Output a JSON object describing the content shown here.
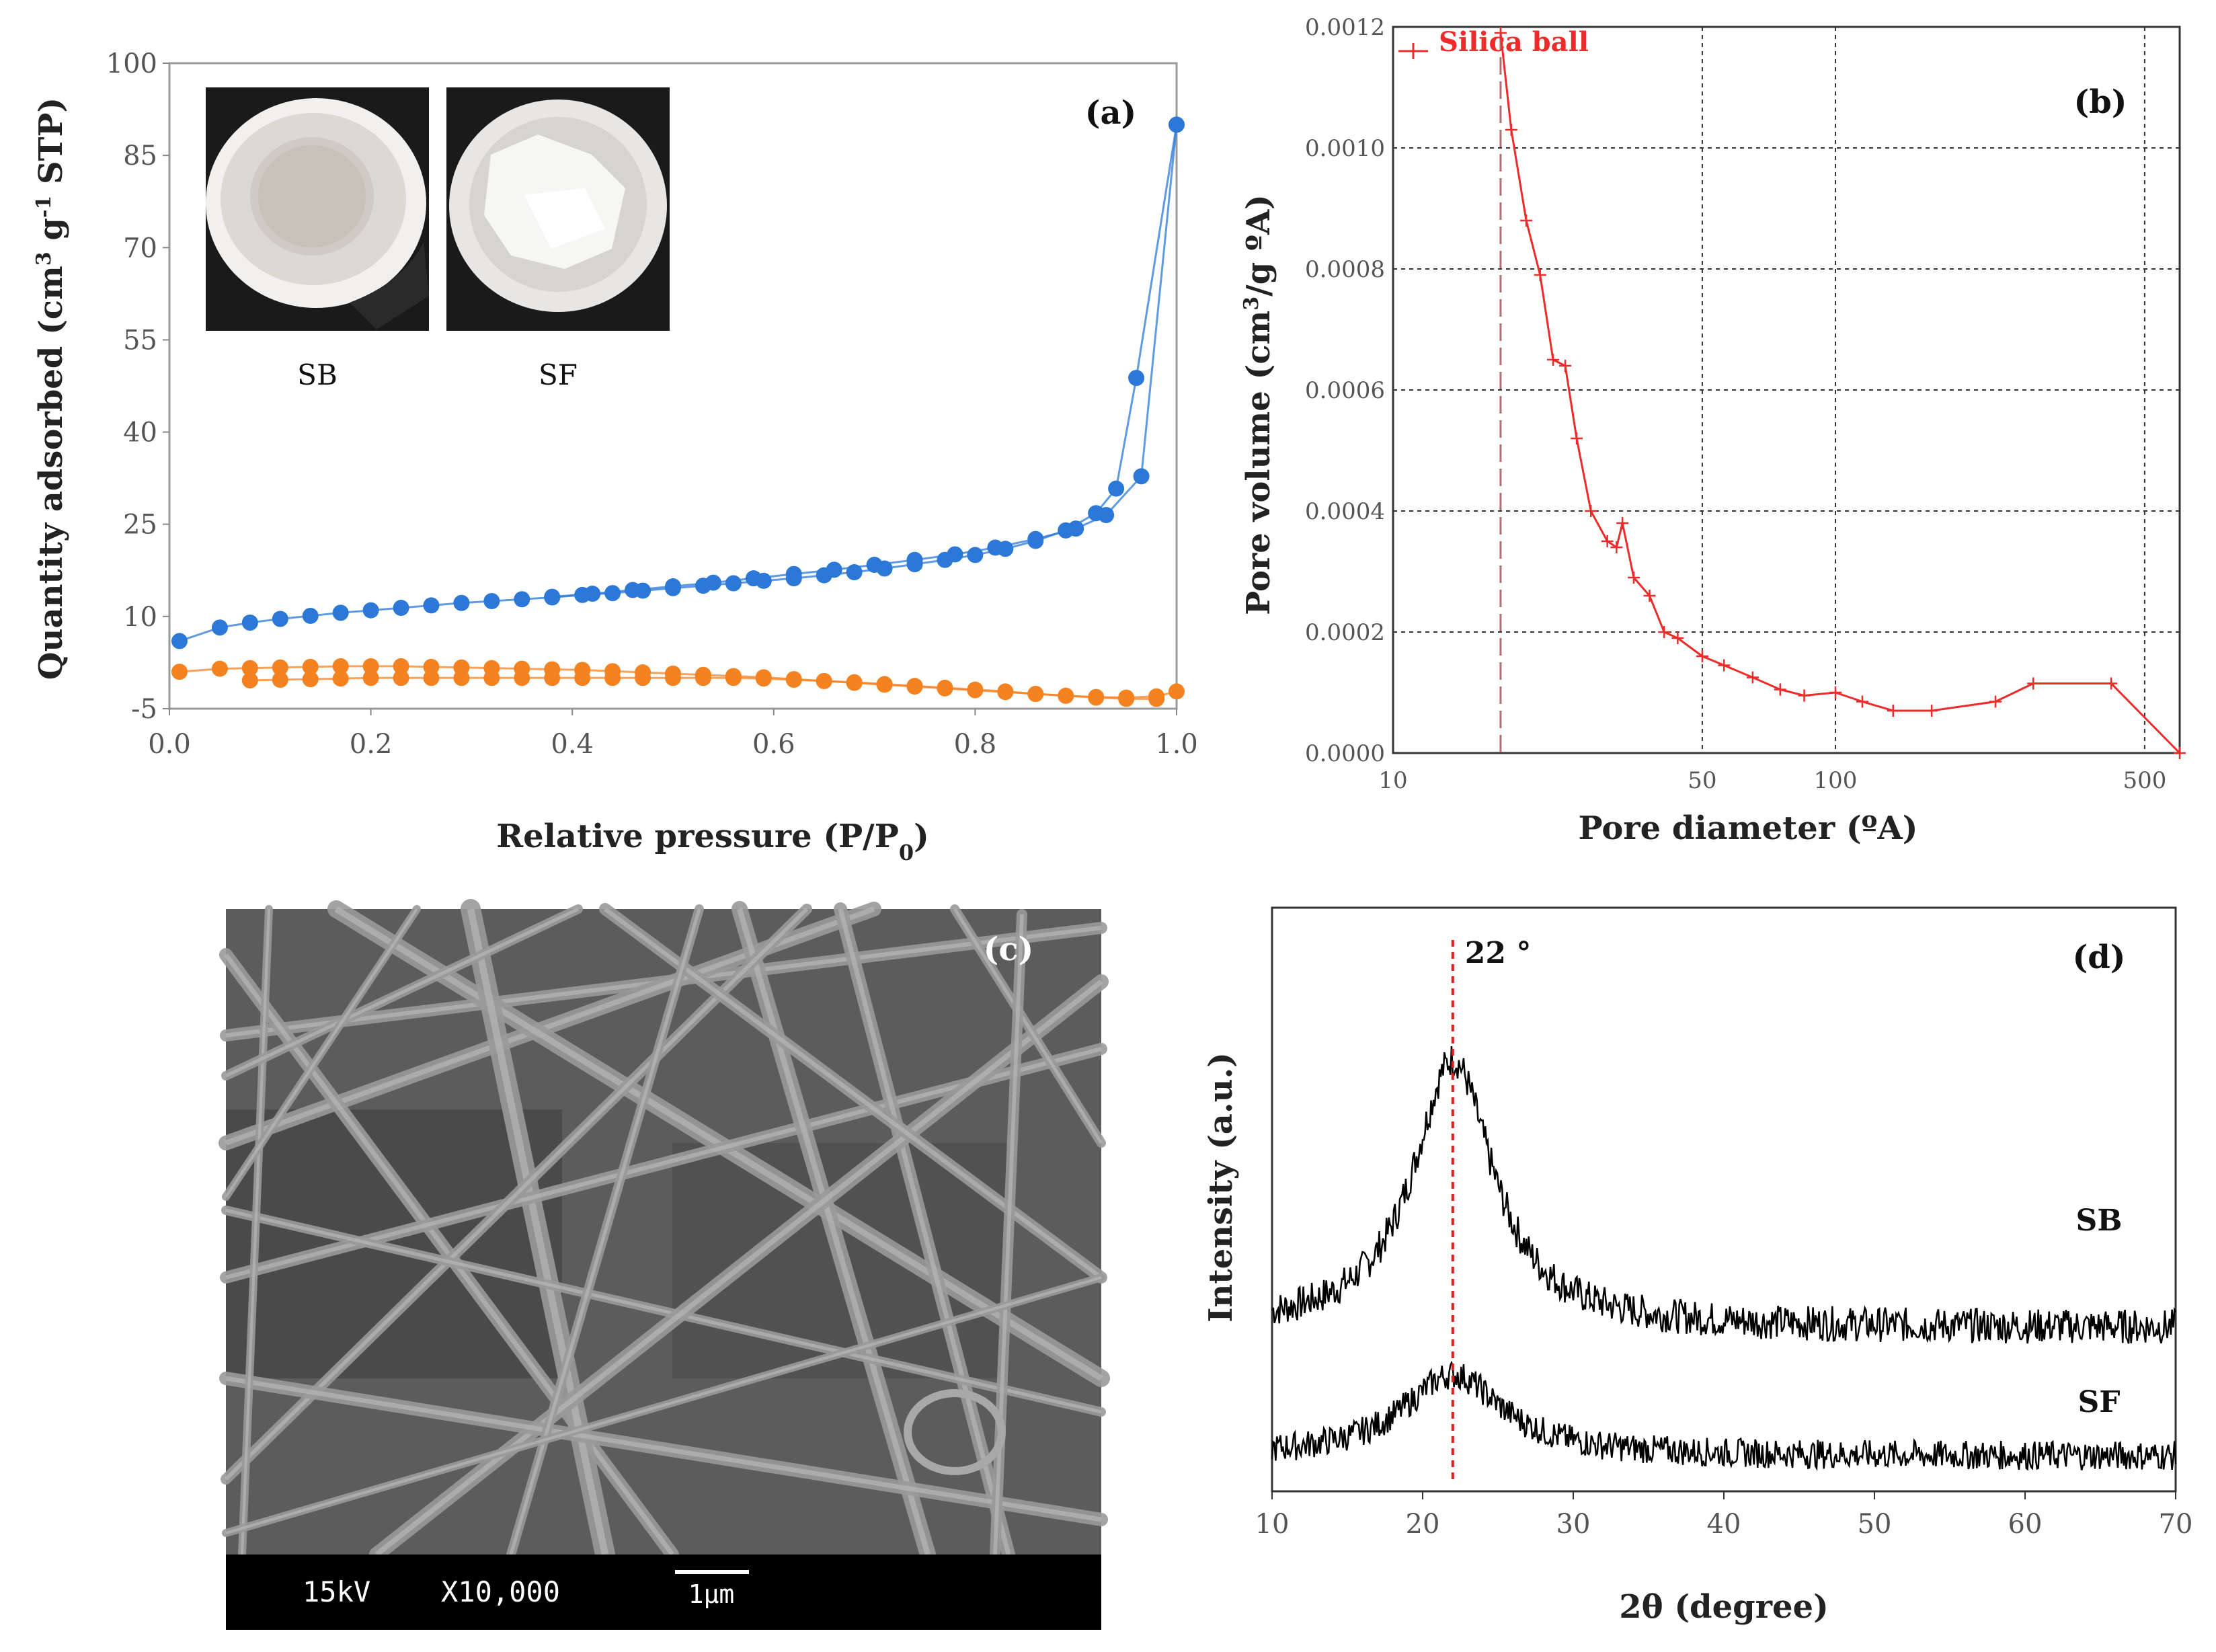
{
  "figure": {
    "panels": [
      "(a)",
      "(b)",
      "(c)",
      "(d)"
    ]
  },
  "chart_data": [
    {
      "type": "line",
      "panel": "(a)",
      "title": "",
      "xlabel": "Relative pressure (P/P",
      "xlabel_sub": "0",
      "xlabel_end": ")",
      "ylabel_parts": [
        "Quantity adsorbed (cm",
        "3",
        " g",
        "-1",
        " STP)"
      ],
      "xlim": [
        0,
        1
      ],
      "ylim": [
        -5,
        100
      ],
      "xticks": [
        "0.0",
        "0.2",
        "0.4",
        "0.6",
        "0.8",
        "1.0"
      ],
      "xtick_values": [
        0,
        0.2,
        0.4,
        0.6,
        0.8,
        1.0
      ],
      "yticks": [
        "-5",
        "10",
        "25",
        "40",
        "55",
        "70",
        "85",
        "100"
      ],
      "ytick_values": [
        -5,
        10,
        25,
        40,
        55,
        70,
        85,
        100
      ],
      "inset_labels": [
        "SB",
        "SF"
      ],
      "series": [
        {
          "name": "SB",
          "color": "#2b78d8",
          "x": [
            0.01,
            0.05,
            0.08,
            0.11,
            0.14,
            0.17,
            0.2,
            0.23,
            0.26,
            0.29,
            0.32,
            0.35,
            0.38,
            0.41,
            0.44,
            0.47,
            0.5,
            0.53,
            0.56,
            0.59,
            0.62,
            0.65,
            0.68,
            0.71,
            0.74,
            0.77,
            0.8,
            0.83,
            0.86,
            0.89,
            0.92,
            0.94,
            0.96,
            1.0
          ],
          "values": [
            6.0,
            8.2,
            9.0,
            9.6,
            10.1,
            10.6,
            11.0,
            11.4,
            11.8,
            12.2,
            12.5,
            12.8,
            13.1,
            13.5,
            13.8,
            14.2,
            14.6,
            15.0,
            15.4,
            15.8,
            16.2,
            16.7,
            17.2,
            17.8,
            18.5,
            19.2,
            20.0,
            21.0,
            22.3,
            24.0,
            26.8,
            30.8,
            48.8,
            90.0
          ]
        },
        {
          "name": "SB-desorption",
          "color": "#2b78d8",
          "x": [
            1.0,
            0.965,
            0.93,
            0.9,
            0.86,
            0.82,
            0.78,
            0.74,
            0.7,
            0.66,
            0.62,
            0.58,
            0.54,
            0.5,
            0.46,
            0.42,
            0.38
          ],
          "values": [
            90.0,
            32.8,
            26.5,
            24.3,
            22.6,
            21.2,
            20.1,
            19.2,
            18.4,
            17.6,
            16.9,
            16.2,
            15.5,
            14.9,
            14.3,
            13.7,
            13.2
          ]
        },
        {
          "name": "SF",
          "color": "#f58220",
          "x": [
            0.01,
            0.05,
            0.08,
            0.11,
            0.14,
            0.17,
            0.2,
            0.23,
            0.26,
            0.29,
            0.32,
            0.35,
            0.38,
            0.41,
            0.44,
            0.47,
            0.5,
            0.53,
            0.56,
            0.59,
            0.62,
            0.65,
            0.68,
            0.71,
            0.74,
            0.77,
            0.8,
            0.83,
            0.86,
            0.89,
            0.92,
            0.95,
            0.98,
            1.0
          ],
          "values": [
            1.0,
            1.5,
            1.6,
            1.7,
            1.8,
            1.9,
            1.9,
            1.9,
            1.8,
            1.7,
            1.6,
            1.5,
            1.4,
            1.3,
            1.1,
            0.9,
            0.7,
            0.5,
            0.3,
            0.1,
            -0.2,
            -0.5,
            -0.8,
            -1.1,
            -1.4,
            -1.7,
            -2.0,
            -2.3,
            -2.6,
            -2.9,
            -3.1,
            -3.2,
            -3.0,
            -2.2
          ]
        },
        {
          "name": "SF-desorption",
          "color": "#f58220",
          "x": [
            0.98,
            0.95,
            0.92,
            0.89,
            0.86,
            0.83,
            0.8,
            0.77,
            0.74,
            0.71,
            0.68,
            0.65,
            0.62,
            0.59,
            0.56,
            0.53,
            0.5,
            0.47,
            0.44,
            0.41,
            0.38,
            0.35,
            0.32,
            0.29,
            0.26,
            0.23,
            0.2,
            0.17,
            0.14,
            0.11,
            0.08
          ],
          "values": [
            -3.4,
            -3.4,
            -3.2,
            -2.9,
            -2.6,
            -2.2,
            -1.9,
            -1.6,
            -1.3,
            -1.0,
            -0.7,
            -0.5,
            -0.3,
            -0.1,
            0.0,
            0.0,
            0.0,
            0.0,
            0.0,
            0.0,
            0.0,
            0.0,
            0.0,
            0.0,
            0.0,
            0.0,
            0.0,
            -0.1,
            -0.2,
            -0.3,
            -0.4
          ]
        }
      ]
    },
    {
      "type": "line",
      "panel": "(b)",
      "title": "",
      "xlabel": "Pore diameter (ºA)",
      "ylabel_parts": [
        "Pore volume (cm",
        "3",
        "/g ºA)"
      ],
      "xscale": "log",
      "xlim": [
        10,
        600
      ],
      "ylim": [
        0,
        0.0012
      ],
      "xticks": [
        "10",
        "50",
        "100",
        "500"
      ],
      "xtick_values": [
        10,
        50,
        100,
        500
      ],
      "yticks": [
        "0.0000",
        "0.0002",
        "0.0004",
        "0.0006",
        "0.0008",
        "0.0010",
        "0.0012"
      ],
      "ytick_values": [
        0,
        0.0002,
        0.0004,
        0.0006,
        0.0008,
        0.001,
        0.0012
      ],
      "grid": true,
      "legend": "Silica ball",
      "vline_x": 17.5,
      "series": [
        {
          "name": "Silica ball",
          "color": "#ee2b2b",
          "x": [
            17.5,
            18.5,
            20.0,
            21.5,
            23.0,
            24.5,
            26.0,
            28.0,
            30.5,
            32.0,
            33.0,
            35.0,
            38.0,
            41.0,
            44.0,
            50.0,
            56.0,
            65.0,
            75.0,
            85.0,
            100.0,
            115.0,
            135.0,
            165.0,
            230.0,
            280.0,
            420.0,
            600.0
          ],
          "values": [
            0.00119,
            0.00103,
            0.00088,
            0.00079,
            0.00065,
            0.00064,
            0.00052,
            0.0004,
            0.00035,
            0.00034,
            0.00038,
            0.00029,
            0.00026,
            0.0002,
            0.00019,
            0.00016,
            0.000145,
            0.000125,
            0.000105,
            9.5e-05,
            0.0001,
            8.5e-05,
            7e-05,
            7e-05,
            8.5e-05,
            0.000115,
            0.000115,
            0.0
          ]
        }
      ]
    },
    {
      "type": "line",
      "panel": "(d)",
      "title": "",
      "xlabel": "2θ (degree)",
      "ylabel": "Intensity (a.u.)",
      "xlim": [
        10,
        70
      ],
      "xticks": [
        "10",
        "20",
        "30",
        "40",
        "50",
        "60",
        "70"
      ],
      "xtick_values": [
        10,
        20,
        30,
        40,
        50,
        60,
        70
      ],
      "peak_label": "22 °",
      "peak_x": 22,
      "series": [
        {
          "name": "SB",
          "color": "#000000",
          "baseline": 0.28,
          "peak_center": 22,
          "peak_height": 0.46,
          "peak_width": 3.2,
          "noise": 0.03
        },
        {
          "name": "SF",
          "color": "#000000",
          "baseline": 0.06,
          "peak_center": 22,
          "peak_height": 0.14,
          "peak_width": 4.0,
          "noise": 0.025
        }
      ]
    }
  ],
  "sem": {
    "panel": "(c)",
    "voltage": "15kV",
    "magnification": "X10,000",
    "scale": "1μm"
  }
}
